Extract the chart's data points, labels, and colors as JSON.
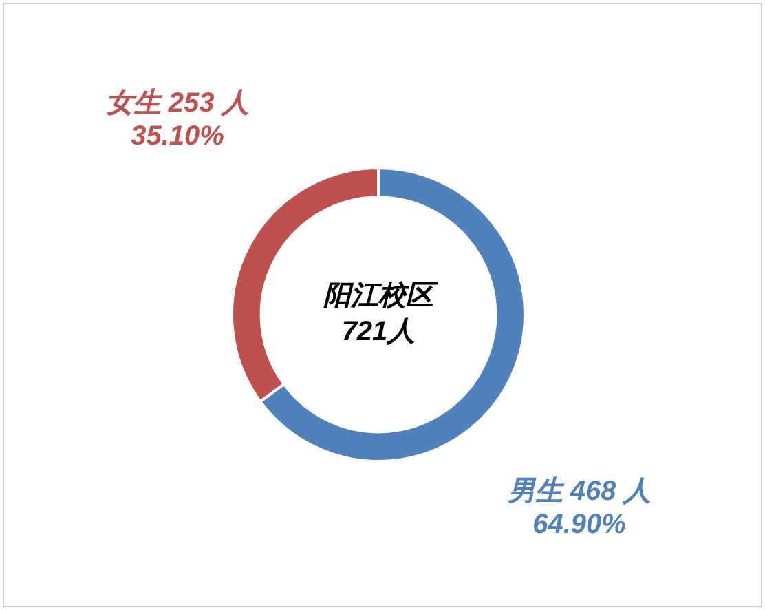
{
  "chart_data": {
    "type": "donut",
    "categories": [
      "男生",
      "女生"
    ],
    "values": [
      468,
      253
    ],
    "colors": [
      "#4f81bd",
      "#c0504d"
    ],
    "value_labels": [
      "468 人\n64.90%",
      "253 人\n35.10%"
    ],
    "annotations": [
      "阳江校区\n721人"
    ],
    "legend": false
  }
}
